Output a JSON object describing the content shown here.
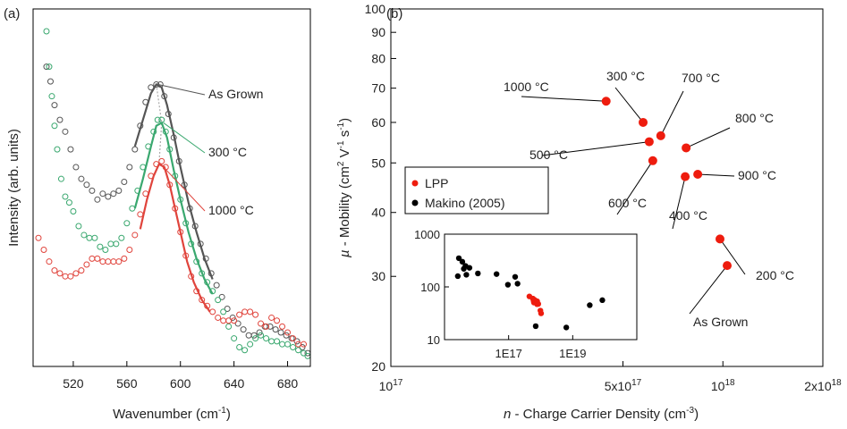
{
  "colors": {
    "as_grown": "#555555",
    "c300": "#3aa86f",
    "c1000": "#e0443c",
    "lpp": "#ee1c0e",
    "makino": "#000000",
    "dotted": "#aaaaaa"
  },
  "chart_data": [
    {
      "panel_label": "(a)",
      "type": "line",
      "xlabel": "Wavenumber (cm",
      "xlabel_sup": "-1",
      "xlabel_tail": ")",
      "ylabel": "Intensity (arb. units)",
      "xlim": [
        490,
        697
      ],
      "x_ticks": [
        520,
        560,
        600,
        640,
        680
      ],
      "y_ticks_shown": false,
      "annotations": [
        "As Grown",
        "300 °C",
        "1000 °C"
      ],
      "series": [
        {
          "name": "As Grown",
          "color_key": "as_grown",
          "markers": [
            [
              500,
              100
            ],
            [
              503,
              95
            ],
            [
              506,
              87
            ],
            [
              510,
              82
            ],
            [
              514,
              78
            ],
            [
              518,
              72
            ],
            [
              522,
              66
            ],
            [
              526,
              62
            ],
            [
              530,
              60
            ],
            [
              534,
              58
            ],
            [
              538,
              55
            ],
            [
              542,
              57
            ],
            [
              546,
              56
            ],
            [
              550,
              57
            ],
            [
              554,
              58
            ],
            [
              558,
              61
            ],
            [
              562,
              66
            ],
            [
              566,
              72
            ],
            [
              570,
              80
            ],
            [
              574,
              88
            ],
            [
              578,
              93
            ],
            [
              582,
              94
            ],
            [
              585,
              94
            ],
            [
              588,
              90
            ],
            [
              591,
              84
            ],
            [
              595,
              76
            ],
            [
              599,
              68
            ],
            [
              603,
              60
            ],
            [
              607,
              52
            ],
            [
              611,
              46
            ],
            [
              615,
              40
            ],
            [
              619,
              35
            ],
            [
              623,
              30
            ],
            [
              627,
              26
            ],
            [
              631,
              22
            ],
            [
              635,
              18
            ],
            [
              639,
              15
            ],
            [
              643,
              13
            ],
            [
              647,
              11
            ],
            [
              651,
              9
            ],
            [
              655,
              9
            ],
            [
              659,
              10
            ],
            [
              663,
              12
            ],
            [
              667,
              12
            ],
            [
              671,
              11
            ],
            [
              675,
              10
            ],
            [
              679,
              9
            ],
            [
              683,
              8
            ],
            [
              687,
              7
            ],
            [
              691,
              5
            ],
            [
              695,
              3
            ]
          ],
          "fit": [
            [
              566,
              73
            ],
            [
              572,
              82
            ],
            [
              578,
              91
            ],
            [
              582,
              94
            ],
            [
              586,
              93
            ],
            [
              590,
              87
            ],
            [
              595,
              77
            ],
            [
              600,
              66
            ],
            [
              606,
              54
            ],
            [
              612,
              44
            ],
            [
              618,
              35
            ],
            [
              624,
              28
            ]
          ]
        },
        {
          "name": "300 °C",
          "color_key": "c300",
          "markers": [
            [
              500,
              112
            ],
            [
              502,
              100
            ],
            [
              504,
              90
            ],
            [
              506,
              80
            ],
            [
              508,
              72
            ],
            [
              511,
              62
            ],
            [
              514,
              56
            ],
            [
              517,
              54
            ],
            [
              520,
              51
            ],
            [
              524,
              46
            ],
            [
              528,
              43
            ],
            [
              532,
              42
            ],
            [
              536,
              42
            ],
            [
              540,
              39
            ],
            [
              544,
              38
            ],
            [
              548,
              40
            ],
            [
              552,
              40
            ],
            [
              556,
              42
            ],
            [
              560,
              47
            ],
            [
              564,
              52
            ],
            [
              568,
              58
            ],
            [
              572,
              66
            ],
            [
              576,
              73
            ],
            [
              580,
              78
            ],
            [
              583,
              82
            ],
            [
              586,
              82
            ],
            [
              589,
              78
            ],
            [
              592,
              72
            ],
            [
              596,
              63
            ],
            [
              600,
              55
            ],
            [
              604,
              47
            ],
            [
              608,
              40
            ],
            [
              612,
              34
            ],
            [
              616,
              30
            ],
            [
              620,
              27
            ],
            [
              624,
              24
            ],
            [
              628,
              21
            ],
            [
              632,
              17
            ],
            [
              636,
              12
            ],
            [
              640,
              8
            ],
            [
              644,
              5
            ],
            [
              648,
              4
            ],
            [
              652,
              6
            ],
            [
              656,
              8
            ],
            [
              660,
              9
            ],
            [
              664,
              8
            ],
            [
              668,
              7
            ],
            [
              672,
              7
            ],
            [
              676,
              6
            ],
            [
              680,
              6
            ],
            [
              684,
              5
            ],
            [
              688,
              4
            ],
            [
              692,
              3
            ],
            [
              695,
              2
            ]
          ],
          "fit": [
            [
              566,
              52
            ],
            [
              572,
              62
            ],
            [
              578,
              73
            ],
            [
              582,
              80
            ],
            [
              586,
              81
            ],
            [
              590,
              76
            ],
            [
              595,
              65
            ],
            [
              600,
              55
            ],
            [
              606,
              44
            ],
            [
              612,
              35
            ],
            [
              618,
              28
            ],
            [
              624,
              23
            ]
          ]
        },
        {
          "name": "1000 °C",
          "color_key": "c1000",
          "markers": [
            [
              490,
              46
            ],
            [
              494,
              42
            ],
            [
              498,
              38
            ],
            [
              502,
              34
            ],
            [
              506,
              31
            ],
            [
              510,
              30
            ],
            [
              514,
              29
            ],
            [
              518,
              29
            ],
            [
              522,
              30
            ],
            [
              526,
              31
            ],
            [
              530,
              33
            ],
            [
              534,
              35
            ],
            [
              538,
              35
            ],
            [
              542,
              34
            ],
            [
              546,
              34
            ],
            [
              550,
              34
            ],
            [
              554,
              34
            ],
            [
              558,
              35
            ],
            [
              562,
              38
            ],
            [
              566,
              43
            ],
            [
              570,
              50
            ],
            [
              574,
              57
            ],
            [
              578,
              63
            ],
            [
              582,
              67
            ],
            [
              586,
              68
            ],
            [
              589,
              66
            ],
            [
              592,
              60
            ],
            [
              596,
              52
            ],
            [
              600,
              44
            ],
            [
              604,
              36
            ],
            [
              608,
              29
            ],
            [
              612,
              24
            ],
            [
              616,
              21
            ],
            [
              620,
              19
            ],
            [
              624,
              17
            ],
            [
              628,
              15
            ],
            [
              632,
              14
            ],
            [
              636,
              14
            ],
            [
              640,
              14
            ],
            [
              644,
              16
            ],
            [
              648,
              17
            ],
            [
              652,
              17
            ],
            [
              656,
              16
            ],
            [
              660,
              13
            ],
            [
              664,
              12
            ],
            [
              668,
              15
            ],
            [
              672,
              14
            ],
            [
              676,
              12
            ],
            [
              680,
              10
            ],
            [
              684,
              8
            ],
            [
              688,
              6
            ],
            [
              692,
              6
            ],
            [
              696,
              5
            ]
          ],
          "fit": [
            [
              570,
              45
            ],
            [
              575,
              55
            ],
            [
              580,
              63
            ],
            [
              584,
              67
            ],
            [
              588,
              66
            ],
            [
              592,
              60
            ],
            [
              596,
              52
            ],
            [
              600,
              44
            ],
            [
              605,
              34
            ],
            [
              610,
              27
            ],
            [
              616,
              21
            ],
            [
              622,
              17
            ]
          ]
        }
      ]
    },
    {
      "panel_label": "(b)",
      "type": "scatter",
      "xlabel_italic": "n",
      "xlabel": " - Charge Carrier Density (cm",
      "xlabel_sup": "-3",
      "xlabel_tail": ")",
      "ylabel_italic": "µ",
      "ylabel": " - Mobility (cm",
      "ylabel_sup1": "2",
      "ylabel_mid": " V",
      "ylabel_sup2": "-1",
      "ylabel_mid2": " s",
      "ylabel_sup3": "-1",
      "ylabel_tail": ")",
      "x_scale": "log",
      "y_scale": "log",
      "xlim": [
        1e+17,
        2e+18
      ],
      "ylim": [
        20,
        100
      ],
      "x_ticks": [
        {
          "value": 1e+17,
          "label": "10",
          "sup": "17"
        },
        {
          "value": 5e+17,
          "label": "5x10",
          "sup": "17"
        },
        {
          "value": 1e+18,
          "label": "10",
          "sup": "18"
        },
        {
          "value": 2e+18,
          "label": "2x10",
          "sup": "18"
        }
      ],
      "y_ticks": [
        20,
        30,
        40,
        50,
        60,
        70,
        80,
        90,
        100
      ],
      "legend": {
        "position": "middle-left",
        "entries": [
          "LPP",
          "Makino (2005)"
        ]
      },
      "series": [
        {
          "name": "LPP",
          "color_key": "lpp",
          "points": [
            {
              "label": "As Grown",
              "x": 1.03e+18,
              "y": 31.5
            },
            {
              "label": "200 °C",
              "x": 9.8e+17,
              "y": 35.5
            },
            {
              "label": "300 °C",
              "x": 5.75e+17,
              "y": 60.0
            },
            {
              "label": "400 °C",
              "x": 7.7e+17,
              "y": 47.0
            },
            {
              "label": "500 °C",
              "x": 6e+17,
              "y": 55.0
            },
            {
              "label": "600 °C",
              "x": 6.15e+17,
              "y": 50.5
            },
            {
              "label": "700 °C",
              "x": 6.5e+17,
              "y": 56.5
            },
            {
              "label": "800 °C",
              "x": 7.75e+17,
              "y": 53.5
            },
            {
              "label": "900 °C",
              "x": 8.4e+17,
              "y": 47.5
            },
            {
              "label": "1000 °C",
              "x": 4.45e+17,
              "y": 66.0
            }
          ]
        }
      ],
      "inset": {
        "x_scale": "log",
        "y_scale": "log",
        "xlim": [
          1000000000000000.0,
          1e+21
        ],
        "ylim": [
          10,
          1000
        ],
        "x_ticks": [
          {
            "value": 1e+17,
            "label": "1E17"
          },
          {
            "value": 1e+19,
            "label": "1E19"
          }
        ],
        "y_ticks": [
          10,
          100,
          1000
        ],
        "series": [
          {
            "name": "Makino (2005)",
            "color_key": "makino",
            "points": [
              [
                2600000000000000.0,
                160
              ],
              [
                2800000000000000.0,
                350
              ],
              [
                3600000000000000.0,
                300
              ],
              [
                4000000000000000.0,
                220
              ],
              [
                4500000000000000.0,
                250
              ],
              [
                4800000000000000.0,
                170
              ],
              [
                6000000000000000.0,
                230
              ],
              [
                1.1e+16,
                180
              ],
              [
                4.2e+16,
                175
              ],
              [
                9.5e+16,
                110
              ],
              [
                1.6e+17,
                155
              ],
              [
                1.9e+17,
                115
              ],
              [
                7e+17,
                18
              ],
              [
                6.3e+18,
                17
              ],
              [
                3.4e+19,
                45
              ],
              [
                8.4e+19,
                56
              ]
            ]
          },
          {
            "name": "LPP",
            "color_key": "lpp",
            "points": [
              [
                4.45e+17,
                66
              ],
              [
                5.75e+17,
                60
              ],
              [
                6e+17,
                55
              ],
              [
                6.15e+17,
                50.5
              ],
              [
                6.5e+17,
                56.5
              ],
              [
                7.7e+17,
                47
              ],
              [
                7.75e+17,
                53.5
              ],
              [
                8.4e+17,
                47.5
              ],
              [
                9.8e+17,
                35.5
              ],
              [
                1.03e+18,
                31.5
              ]
            ]
          }
        ]
      }
    }
  ]
}
